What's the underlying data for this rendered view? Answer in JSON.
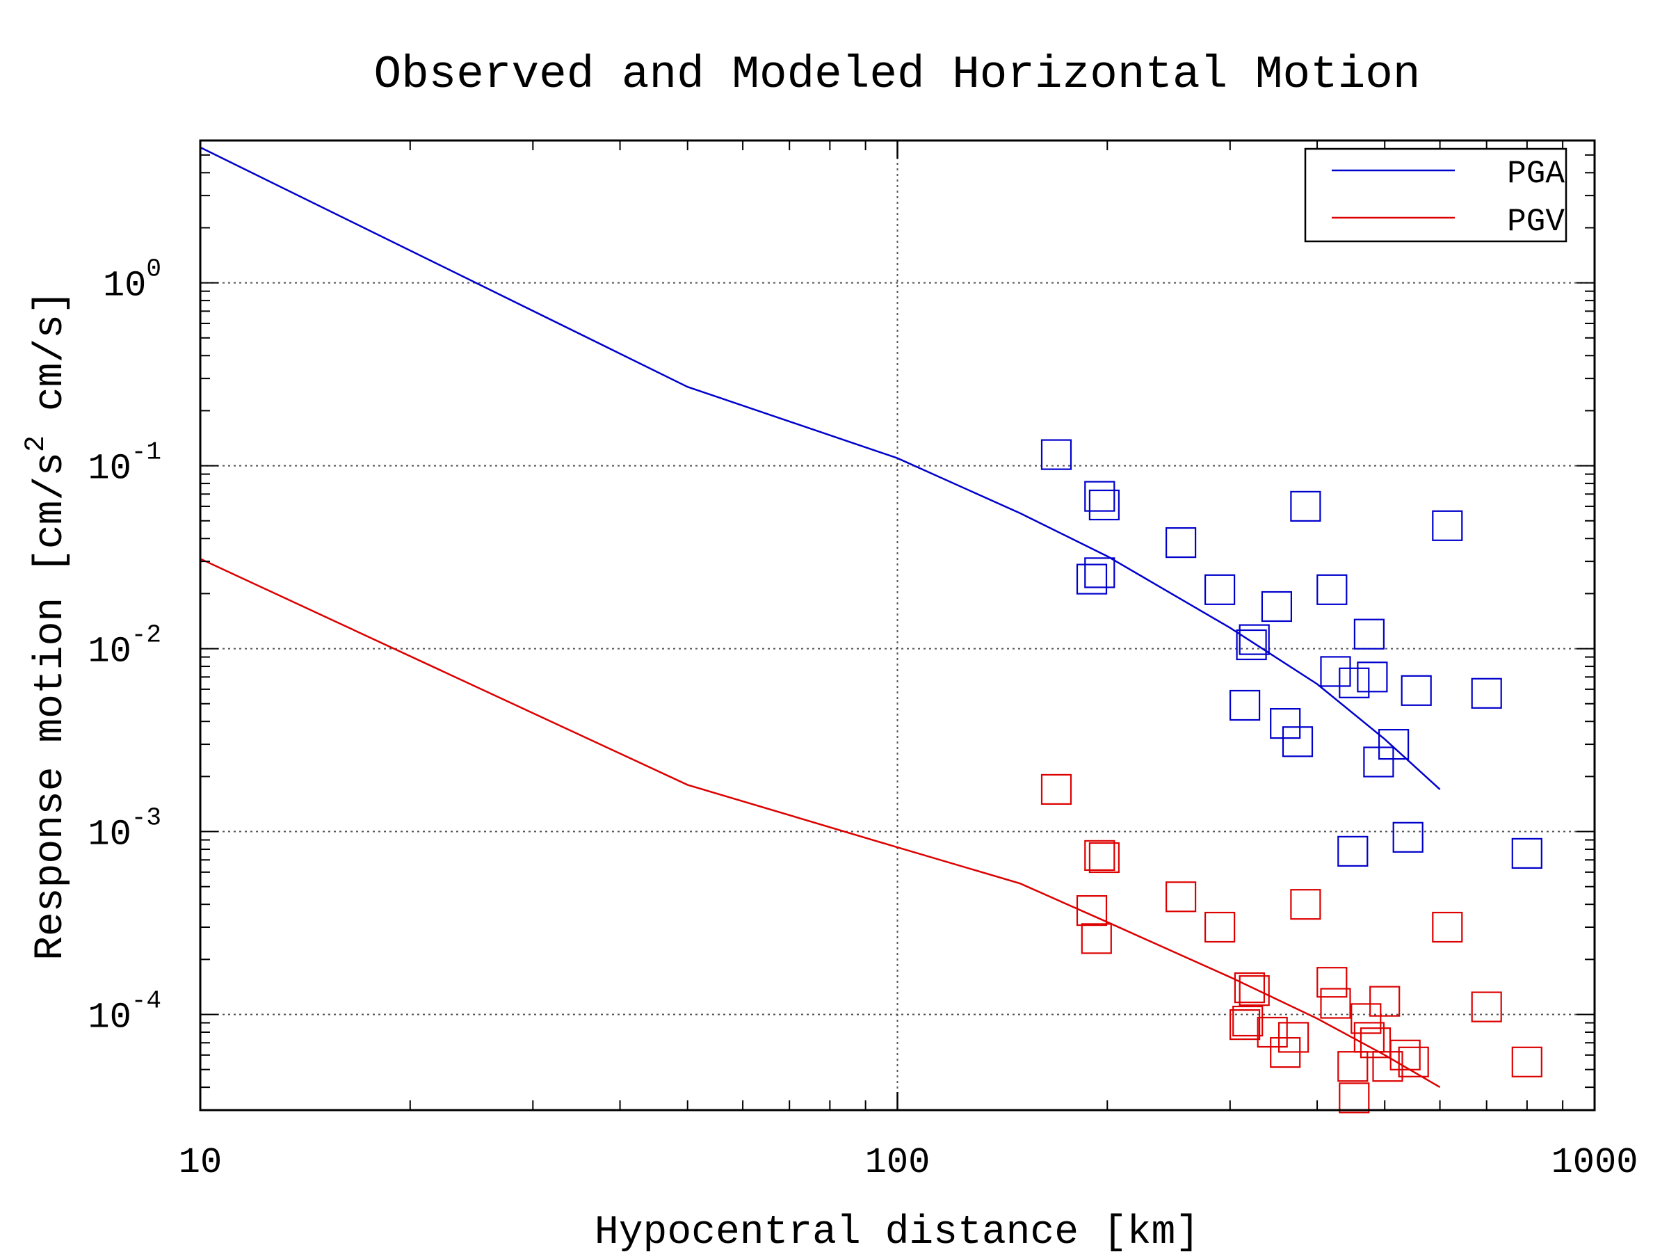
{
  "chart_data": {
    "type": "scatter",
    "title": "Observed and Modeled Horizontal Motion",
    "xlabel": "Hypocentral distance [km]",
    "ylabel_parts": {
      "prefix": "Response motion [cm/s",
      "superscript": "2",
      "suffix": " cm/s]"
    },
    "xscale": "log",
    "yscale": "log",
    "xlim": [
      10,
      1000
    ],
    "ylim": [
      3e-05,
      6.0
    ],
    "grid": true,
    "legend_position": "top-right",
    "x_ticks": [
      {
        "value": 10,
        "label": "10"
      },
      {
        "value": 100,
        "label": "100"
      },
      {
        "value": 1000,
        "label": "1000"
      }
    ],
    "y_ticks": [
      {
        "value": 1,
        "base": "10",
        "exponent": "0"
      },
      {
        "value": 0.1,
        "base": "10",
        "exponent": "-1"
      },
      {
        "value": 0.01,
        "base": "10",
        "exponent": "-2"
      },
      {
        "value": 0.001,
        "base": "10",
        "exponent": "-3"
      },
      {
        "value": 0.0001,
        "base": "10",
        "exponent": "-4"
      }
    ],
    "series": [
      {
        "name": "PGA",
        "color": "#0000cc",
        "model_line": [
          [
            10,
            5.5
          ],
          [
            50,
            0.27
          ],
          [
            100,
            0.11
          ],
          [
            150,
            0.055
          ],
          [
            200,
            0.032
          ],
          [
            300,
            0.013
          ],
          [
            400,
            0.0064
          ],
          [
            500,
            0.0032
          ],
          [
            600,
            0.0017
          ]
        ],
        "observed": [
          [
            169,
            0.115
          ],
          [
            195,
            0.068
          ],
          [
            198,
            0.061
          ],
          [
            190,
            0.024
          ],
          [
            195,
            0.026
          ],
          [
            255,
            0.038
          ],
          [
            290,
            0.021
          ],
          [
            322,
            0.0105
          ],
          [
            325,
            0.0112
          ],
          [
            350,
            0.017
          ],
          [
            385,
            0.06
          ],
          [
            420,
            0.021
          ],
          [
            315,
            0.0049
          ],
          [
            360,
            0.0039
          ],
          [
            375,
            0.0031
          ],
          [
            425,
            0.0075
          ],
          [
            452,
            0.0065
          ],
          [
            480,
            0.007
          ],
          [
            475,
            0.012
          ],
          [
            490,
            0.0024
          ],
          [
            515,
            0.003
          ],
          [
            555,
            0.0059
          ],
          [
            615,
            0.047
          ],
          [
            700,
            0.0057
          ],
          [
            450,
            0.00078
          ],
          [
            540,
            0.00093
          ],
          [
            800,
            0.00076
          ]
        ]
      },
      {
        "name": "PGV",
        "color": "#dd0000",
        "model_line": [
          [
            10,
            0.031
          ],
          [
            50,
            0.0018
          ],
          [
            100,
            0.00082
          ],
          [
            150,
            0.00052
          ],
          [
            200,
            0.00032
          ],
          [
            300,
            0.00016
          ],
          [
            400,
            9.5e-05
          ],
          [
            500,
            6e-05
          ],
          [
            600,
            4e-05
          ]
        ],
        "observed": [
          [
            169,
            0.0017
          ],
          [
            195,
            0.00074
          ],
          [
            198,
            0.00072
          ],
          [
            190,
            0.00037
          ],
          [
            193,
            0.00026
          ],
          [
            255,
            0.00044
          ],
          [
            290,
            0.0003
          ],
          [
            385,
            0.0004
          ],
          [
            615,
            0.0003
          ],
          [
            320,
            0.00014
          ],
          [
            325,
            0.000135
          ],
          [
            315,
            8.8e-05
          ],
          [
            318,
            9.2e-05
          ],
          [
            345,
            8e-05
          ],
          [
            360,
            6.2e-05
          ],
          [
            370,
            7.5e-05
          ],
          [
            420,
            0.00015
          ],
          [
            425,
            0.000115
          ],
          [
            470,
            9.5e-05
          ],
          [
            475,
            7.5e-05
          ],
          [
            485,
            7e-05
          ],
          [
            500,
            0.000118
          ],
          [
            505,
            5.2e-05
          ],
          [
            535,
            6e-05
          ],
          [
            550,
            5.5e-05
          ],
          [
            450,
            5.2e-05
          ],
          [
            452,
            3.5e-05
          ],
          [
            700,
            0.00011
          ],
          [
            800,
            5.5e-05
          ]
        ]
      }
    ]
  }
}
